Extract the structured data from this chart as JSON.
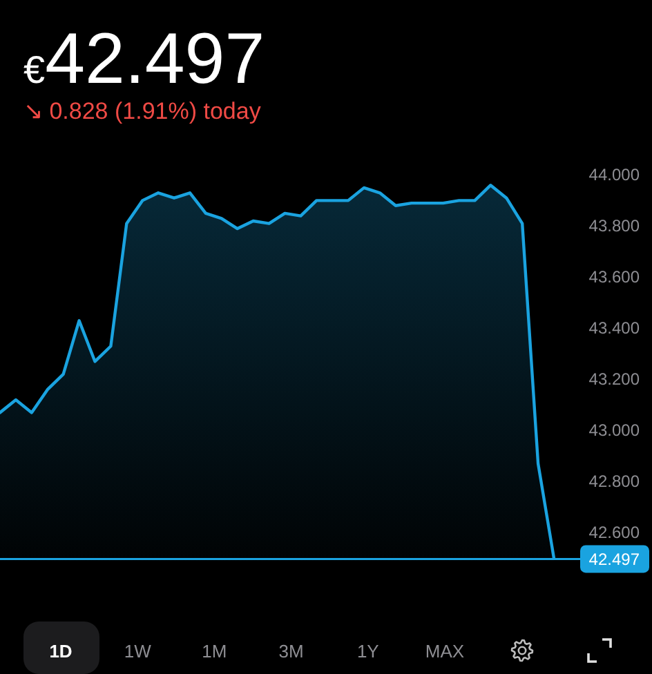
{
  "chart_data": {
    "type": "area",
    "title": "€42.497",
    "subtitle": "↘ 0.828 (1.91%) today",
    "categories": [
      null,
      null,
      null,
      null,
      null,
      null,
      null,
      null,
      null,
      null,
      null,
      null,
      null,
      null,
      null,
      null,
      null,
      null,
      null,
      null,
      null,
      null,
      null,
      null,
      null,
      null,
      null,
      null,
      null,
      null,
      null,
      null,
      null,
      null,
      null,
      null
    ],
    "values": [
      43.07,
      43.12,
      43.07,
      43.16,
      43.22,
      43.43,
      43.27,
      43.33,
      43.81,
      43.9,
      43.93,
      43.91,
      43.93,
      43.85,
      43.83,
      43.79,
      43.82,
      43.81,
      43.85,
      43.84,
      43.9,
      43.9,
      43.9,
      43.95,
      43.93,
      43.88,
      43.89,
      43.89,
      43.89,
      43.9,
      43.9,
      43.96,
      43.91,
      43.81,
      42.87,
      42.5
    ],
    "color": "#1aa3e0",
    "ylim": [
      42.49,
      44.0
    ],
    "yticks": [
      {
        "value": 42.6,
        "label": "42.600"
      },
      {
        "value": 42.8,
        "label": "42.800"
      },
      {
        "value": 43.0,
        "label": "43.000"
      },
      {
        "value": 43.2,
        "label": "43.200"
      },
      {
        "value": 43.4,
        "label": "43.400"
      },
      {
        "value": 43.6,
        "label": "43.600"
      },
      {
        "value": 43.8,
        "label": "43.800"
      },
      {
        "value": 44.0,
        "label": "44.000"
      }
    ],
    "tick_labels": "y",
    "ref_lines": [
      {
        "axis": "y",
        "value": 42.497,
        "label": "42.497",
        "color": "#1aa3e0"
      }
    ],
    "annotations": [
      "1D",
      "1W",
      "1M",
      "3M",
      "1Y",
      "MAX"
    ]
  }
}
